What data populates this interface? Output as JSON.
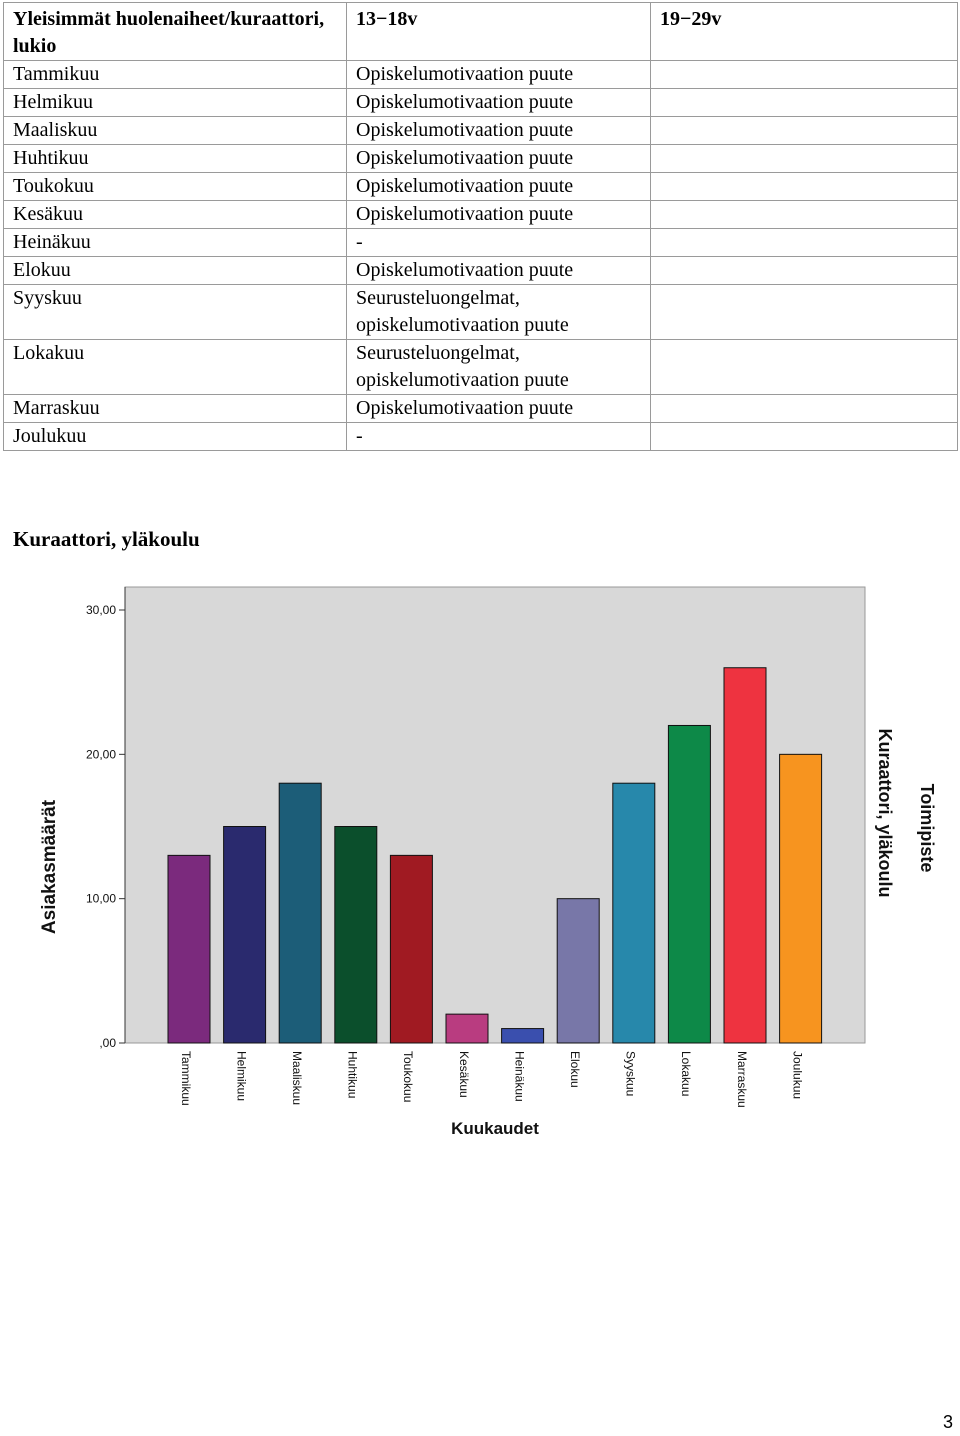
{
  "table": {
    "headers": [
      "Yleisimmät huolenaiheet/kuraattori, lukio",
      "13−18v",
      "19−29v"
    ],
    "rows": [
      {
        "month": "Tammikuu",
        "group_13_18": "Opiskelumotivaation puute",
        "group_19_29": ""
      },
      {
        "month": "Helmikuu",
        "group_13_18": "Opiskelumotivaation puute",
        "group_19_29": ""
      },
      {
        "month": "Maaliskuu",
        "group_13_18": "Opiskelumotivaation puute",
        "group_19_29": ""
      },
      {
        "month": "Huhtikuu",
        "group_13_18": "Opiskelumotivaation puute",
        "group_19_29": ""
      },
      {
        "month": "Toukokuu",
        "group_13_18": "Opiskelumotivaation puute",
        "group_19_29": ""
      },
      {
        "month": "Kesäkuu",
        "group_13_18": "Opiskelumotivaation puute",
        "group_19_29": ""
      },
      {
        "month": "Heinäkuu",
        "group_13_18": "-",
        "group_19_29": ""
      },
      {
        "month": "Elokuu",
        "group_13_18": "Opiskelumotivaation puute",
        "group_19_29": ""
      },
      {
        "month": "Syyskuu",
        "group_13_18": "Seurusteluongelmat,\nopiskelumotivaation puute",
        "group_19_29": ""
      },
      {
        "month": "Lokakuu",
        "group_13_18": "Seurusteluongelmat,\nopiskelumotivaation puute",
        "group_19_29": ""
      },
      {
        "month": "Marraskuu",
        "group_13_18": "Opiskelumotivaation puute",
        "group_19_29": ""
      },
      {
        "month": "Joulukuu",
        "group_13_18": "-",
        "group_19_29": ""
      }
    ]
  },
  "section_heading": "Kuraattori, yläkoulu",
  "chart_data": {
    "type": "bar",
    "categories": [
      "Tammikuu",
      "Helmikuu",
      "Maaliskuu",
      "Huhtikuu",
      "Toukokuu",
      "Kesäkuu",
      "Heinäkuu",
      "Elokuu",
      "Syyskuu",
      "Lokakuu",
      "Marraskuu",
      "Joulukuu"
    ],
    "values": [
      13,
      15,
      18,
      15,
      13,
      2,
      1,
      10,
      18,
      22,
      26,
      20
    ],
    "colors": [
      "#7b2a7d",
      "#2a2a6e",
      "#1c5d78",
      "#0b4f2c",
      "#a01a22",
      "#b93c80",
      "#3a4fae",
      "#7877a8",
      "#2788ab",
      "#0d8948",
      "#ee3340",
      "#f7941f"
    ],
    "title": "",
    "xlabel": "Kuukaudet",
    "ylabel": "Asiakasmäärät",
    "ylim": [
      0,
      30
    ],
    "yticks": [
      0,
      10,
      20,
      30
    ],
    "ytick_labels": [
      ",00",
      "10,00",
      "20,00",
      "30,00"
    ],
    "grid": false,
    "plot_background": "#d8d8d8",
    "legend": {
      "title": "Toimipiste",
      "entries": [
        "Kuraattori, yläkoulu"
      ],
      "placement": "right"
    }
  },
  "page_number": "3"
}
